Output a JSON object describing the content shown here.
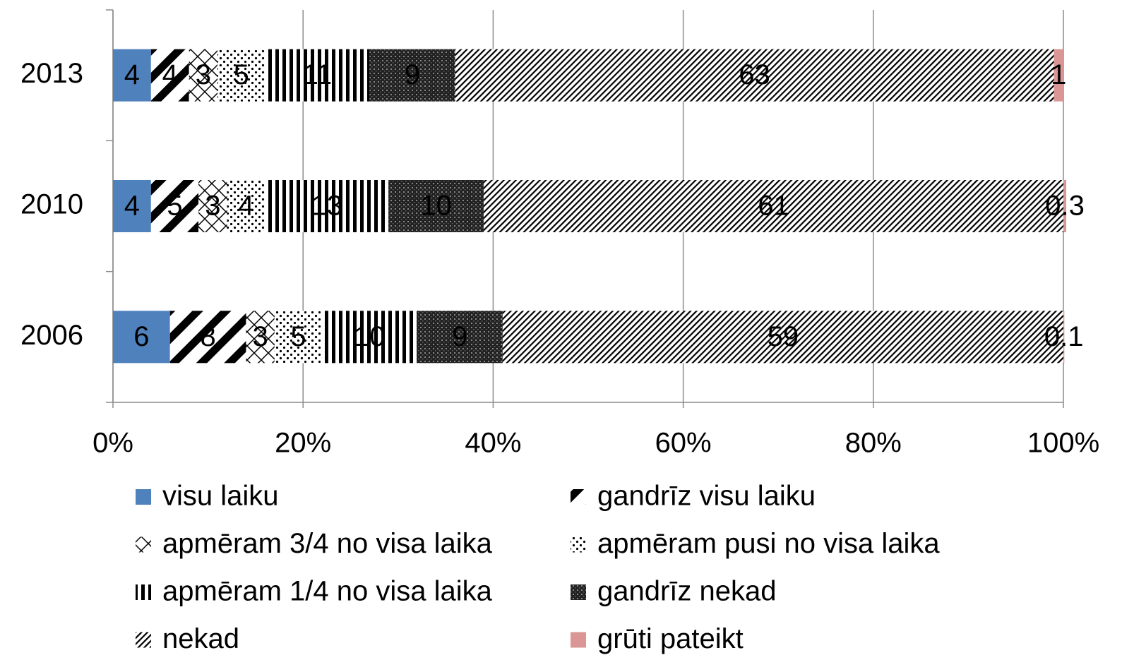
{
  "chart_data": {
    "type": "bar",
    "orientation": "horizontal",
    "stacked": true,
    "categories": [
      "2013",
      "2010",
      "2006"
    ],
    "series": [
      {
        "name": "visu laiku",
        "color": "#4f81bd",
        "pattern": "solid",
        "values": [
          4,
          4,
          6
        ]
      },
      {
        "name": "gandrīz visu laiku",
        "color": "#000000",
        "pattern": "wide-diagonal",
        "values": [
          4,
          5,
          8
        ]
      },
      {
        "name": "apmēram 3/4  no visa laika",
        "color": "#000000",
        "pattern": "diamond",
        "values": [
          3,
          3,
          3
        ]
      },
      {
        "name": "apmēram pusi no visa laika",
        "color": "#000000",
        "pattern": "dots",
        "values": [
          5,
          4,
          5
        ]
      },
      {
        "name": "apmēram 1/4 no visa laika",
        "color": "#000000",
        "pattern": "vertical",
        "values": [
          11,
          13,
          10
        ]
      },
      {
        "name": "gandrīz nekad",
        "color": "#000000",
        "pattern": "dense",
        "values": [
          9,
          10,
          9
        ]
      },
      {
        "name": "nekad",
        "color": "#000000",
        "pattern": "thin-diagonal",
        "values": [
          63,
          61,
          59
        ]
      },
      {
        "name": "grūti pateikt",
        "color": "#d99694",
        "pattern": "solid",
        "values": [
          1,
          0.3,
          0.1
        ]
      }
    ],
    "xlim": [
      0,
      100
    ],
    "xticks": [
      {
        "value": 0,
        "label": "0%"
      },
      {
        "value": 20,
        "label": "20%"
      },
      {
        "value": 40,
        "label": "40%"
      },
      {
        "value": 60,
        "label": "60%"
      },
      {
        "value": 80,
        "label": "80%"
      },
      {
        "value": 100,
        "label": "100%"
      }
    ],
    "grid": true,
    "legend": "bottom",
    "data_labels": true
  }
}
